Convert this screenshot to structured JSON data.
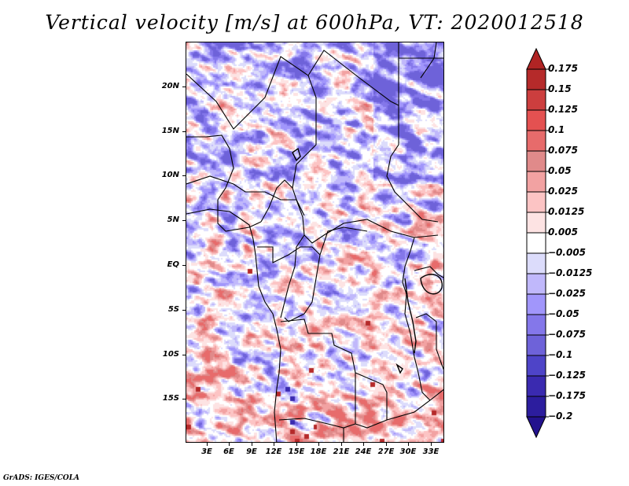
{
  "title": "Vertical velocity [m/s] at 600hPa, VT: 2020012518",
  "credit": "GrADS: IGES/COLA",
  "map": {
    "projection": "latlon",
    "lon_range": [
      0.2,
      34.8
    ],
    "lat_range": [
      -19.9,
      25.0
    ],
    "variable": "Vertical velocity",
    "units": "m/s",
    "level": "600hPa",
    "valid_time": "2020012518",
    "y_axis": {
      "ticks": [
        {
          "label": "20N",
          "lat": 20
        },
        {
          "label": "15N",
          "lat": 15
        },
        {
          "label": "10N",
          "lat": 10
        },
        {
          "label": "5N",
          "lat": 5
        },
        {
          "label": "EQ",
          "lat": 0
        },
        {
          "label": "5S",
          "lat": -5
        },
        {
          "label": "10S",
          "lat": -10
        },
        {
          "label": "15S",
          "lat": -15
        }
      ]
    },
    "x_axis": {
      "ticks": [
        {
          "label": "3E",
          "lon": 3
        },
        {
          "label": "6E",
          "lon": 6
        },
        {
          "label": "9E",
          "lon": 9
        },
        {
          "label": "12E",
          "lon": 12
        },
        {
          "label": "15E",
          "lon": 15
        },
        {
          "label": "18E",
          "lon": 18
        },
        {
          "label": "21E",
          "lon": 21
        },
        {
          "label": "24E",
          "lon": 24
        },
        {
          "label": "27E",
          "lon": 27
        },
        {
          "label": "30E",
          "lon": 30
        },
        {
          "label": "33E",
          "lon": 33
        }
      ]
    }
  },
  "colorbar": {
    "orientation": "vertical",
    "extend": "both",
    "levels": [
      "0.175",
      "0.15",
      "0.125",
      "0.1",
      "0.075",
      "0.05",
      "0.025",
      "0.0125",
      "0.005",
      "-0.005",
      "-0.0125",
      "-0.025",
      "-0.05",
      "-0.075",
      "-0.1",
      "-0.125",
      "-0.175",
      "-0.2"
    ],
    "colors": [
      "#b02424",
      "#b52a2a",
      "#cc3e3e",
      "#e45151",
      "#e76b6b",
      "#e08a8a",
      "#f2a2a2",
      "#fcc4c4",
      "#fde3e3",
      "#ffffff",
      "#dcdcfb",
      "#c0b8fb",
      "#a196fb",
      "#8477ea",
      "#6e62d9",
      "#4e44c8",
      "#3a2ab0",
      "#2c1d9e",
      "#23128e"
    ]
  }
}
